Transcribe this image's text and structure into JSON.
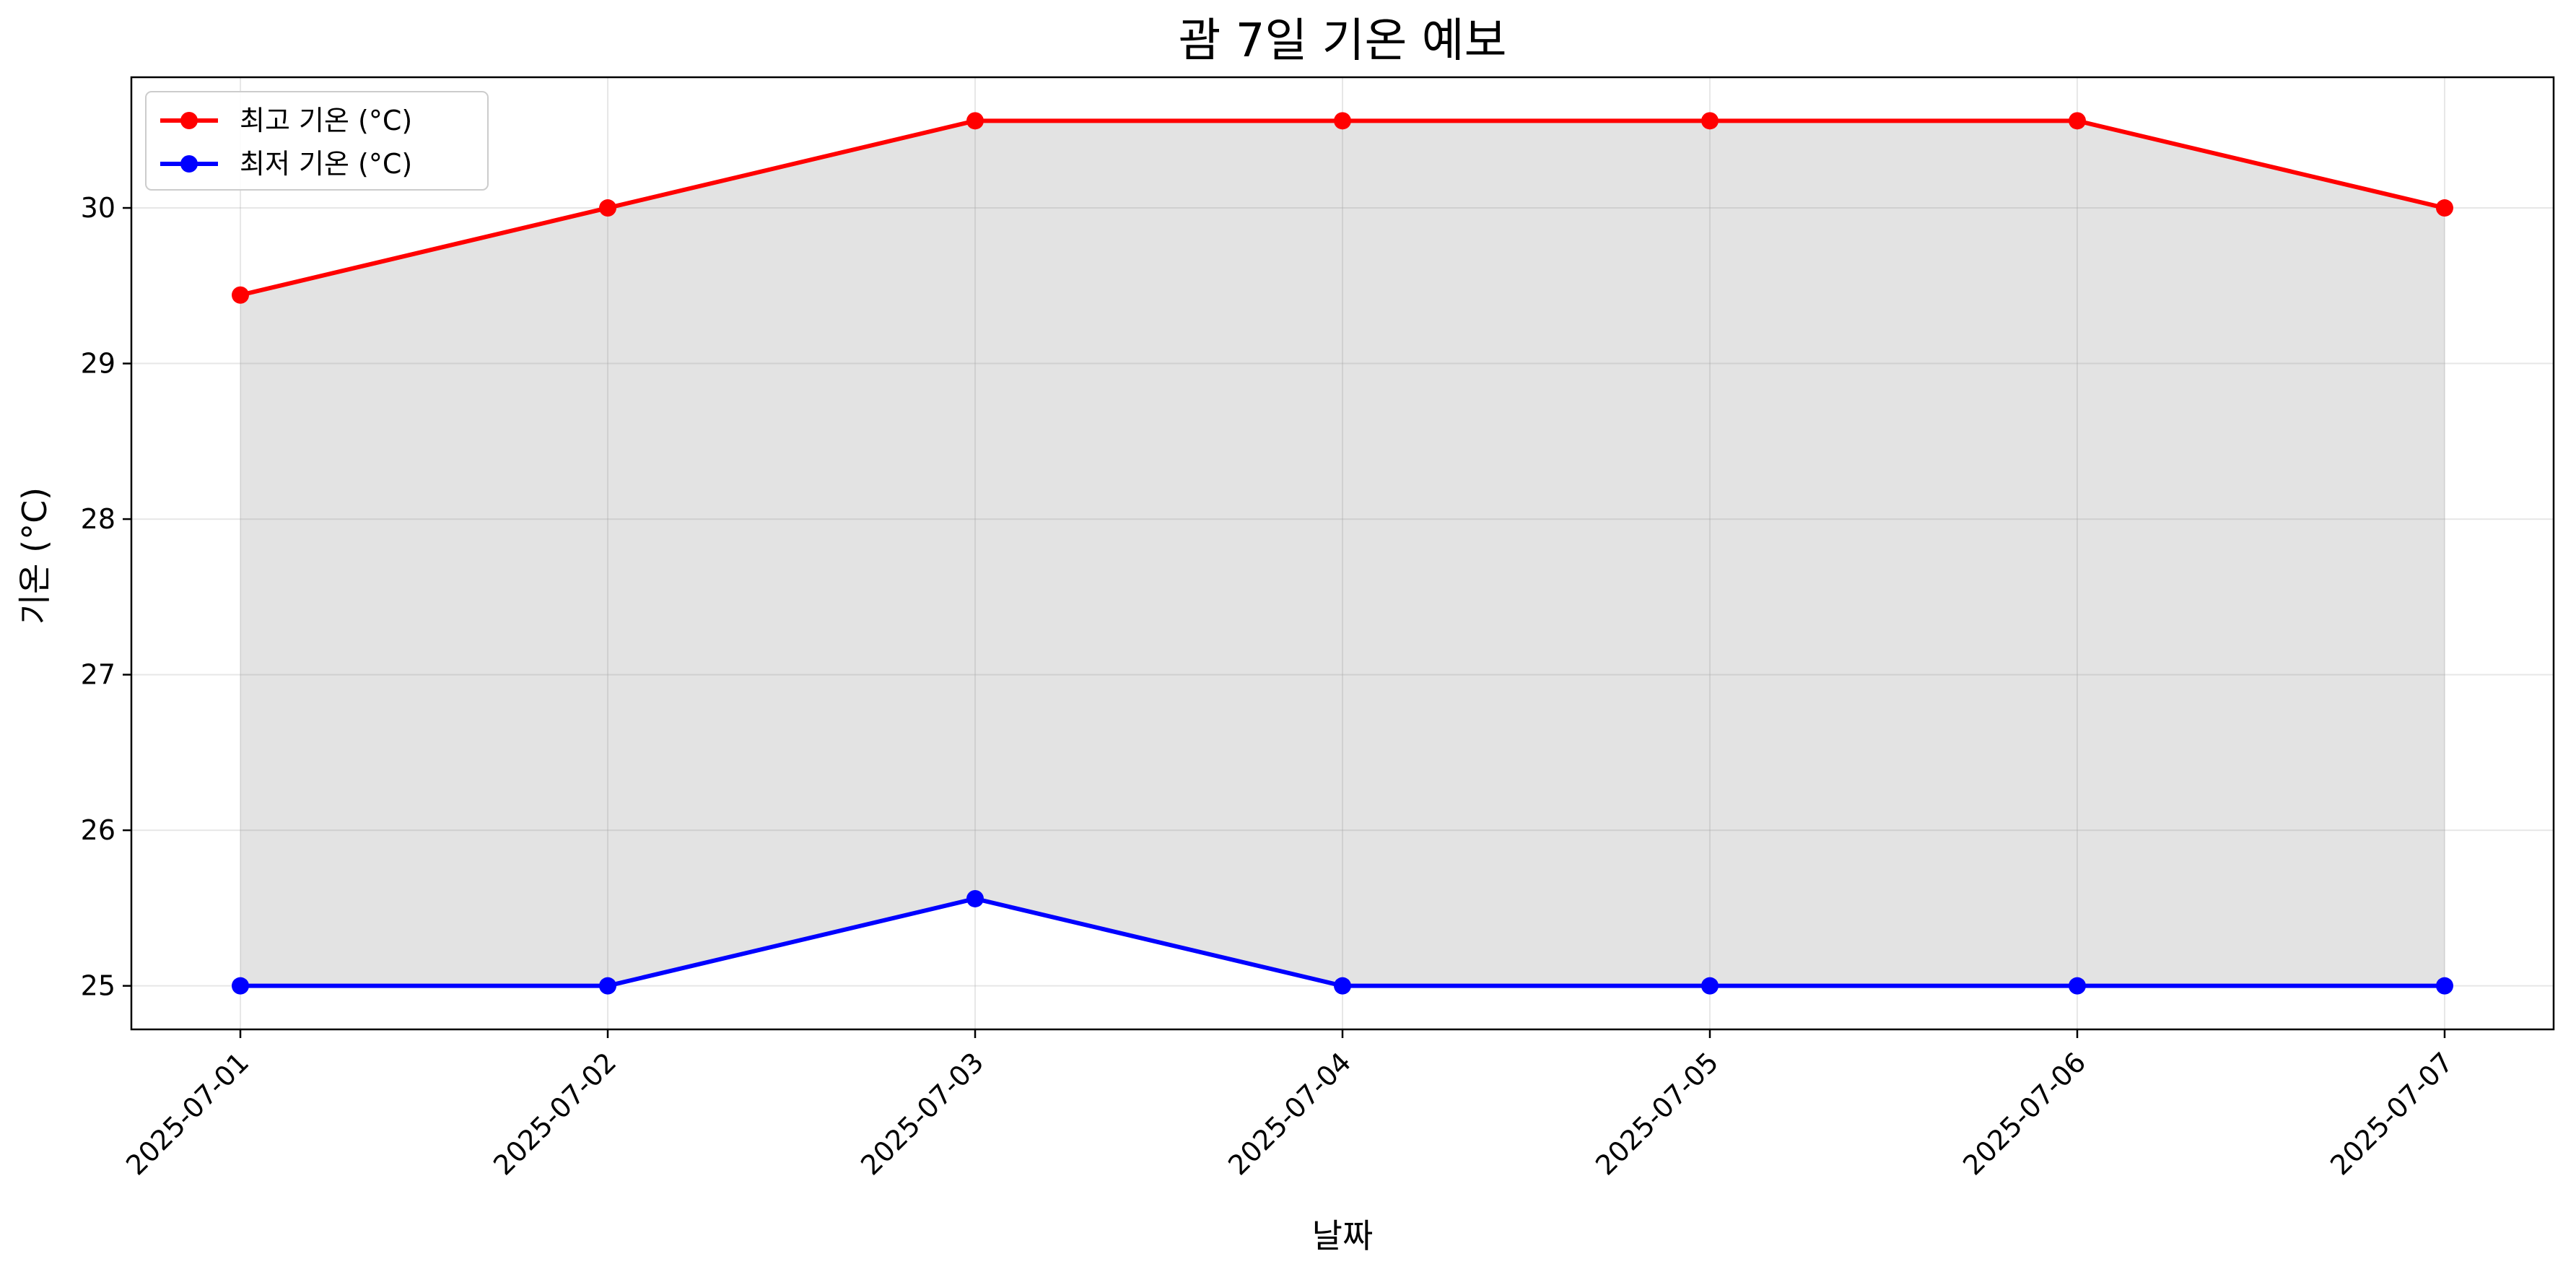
{
  "chart_data": {
    "type": "line",
    "title": "괌 7일 기온 예보",
    "xlabel": "날짜",
    "ylabel": "기온 (°C)",
    "x": [
      "2025-07-01",
      "2025-07-02",
      "2025-07-03",
      "2025-07-04",
      "2025-07-05",
      "2025-07-06",
      "2025-07-07"
    ],
    "series": [
      {
        "name": "최고 기온 (°C)",
        "color": "#ff0000",
        "values": [
          29.44,
          30.0,
          30.56,
          30.56,
          30.56,
          30.56,
          30.0
        ]
      },
      {
        "name": "최저 기온 (°C)",
        "color": "#0000ff",
        "values": [
          25.0,
          25.0,
          25.56,
          25.0,
          25.0,
          25.0,
          25.0
        ]
      }
    ],
    "fill_between": {
      "color": "#808080",
      "alpha": 0.22
    },
    "ylim": [
      24.72,
      30.84
    ],
    "yticks": [
      25,
      26,
      27,
      28,
      29,
      30
    ],
    "grid": true,
    "legend": "upper-left",
    "marker": "circle"
  }
}
